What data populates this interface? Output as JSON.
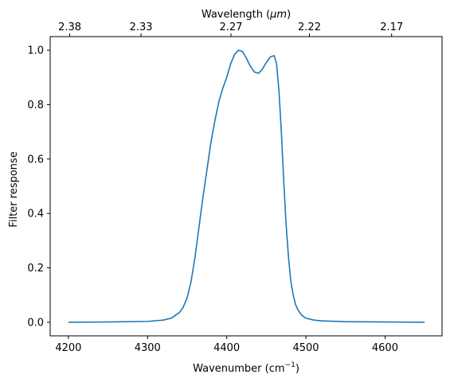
{
  "chart_data": {
    "type": "line",
    "xlabel": "Wavenumber",
    "xlabel_unit": "cm",
    "xlabel_unit_sup": "−1",
    "ylabel": "Filter response",
    "top_xlabel": "Wavelength",
    "top_xlabel_unit": "μm",
    "xlim": [
      4177,
      4672
    ],
    "ylim": [
      -0.05,
      1.05
    ],
    "x_ticks": [
      4200,
      4300,
      4400,
      4500,
      4600
    ],
    "x_tick_labels": [
      "4200",
      "4300",
      "4400",
      "4500",
      "4600"
    ],
    "y_ticks": [
      0.0,
      0.2,
      0.4,
      0.6,
      0.8,
      1.0
    ],
    "y_tick_labels": [
      "0.0",
      "0.2",
      "0.4",
      "0.6",
      "0.8",
      "1.0"
    ],
    "top_ticks_wavenumber": [
      4201.7,
      4291.8,
      4405.3,
      4504.5,
      4608.3
    ],
    "top_tick_labels": [
      "2.38",
      "2.33",
      "2.27",
      "2.22",
      "2.17"
    ],
    "grid": false,
    "line_color": "#1f77b4",
    "series": [
      {
        "x": [
          4200,
          4250,
          4300,
          4320,
          4330,
          4340,
          4345,
          4350,
          4355,
          4360,
          4365,
          4370,
          4375,
          4380,
          4385,
          4390,
          4395,
          4400,
          4405,
          4410,
          4415,
          4420,
          4425,
          4430,
          4435,
          4440,
          4445,
          4450,
          4455,
          4460,
          4463,
          4466,
          4469,
          4472,
          4475,
          4478,
          4481,
          4484,
          4487,
          4490,
          4495,
          4500,
          4510,
          4520,
          4550,
          4600,
          4650
        ],
        "y": [
          0.0,
          0.001,
          0.003,
          0.008,
          0.015,
          0.035,
          0.055,
          0.09,
          0.15,
          0.24,
          0.35,
          0.46,
          0.56,
          0.66,
          0.74,
          0.81,
          0.86,
          0.9,
          0.95,
          0.985,
          1.0,
          0.995,
          0.97,
          0.94,
          0.92,
          0.915,
          0.93,
          0.955,
          0.975,
          0.98,
          0.95,
          0.85,
          0.7,
          0.52,
          0.36,
          0.24,
          0.15,
          0.1,
          0.065,
          0.045,
          0.025,
          0.015,
          0.008,
          0.005,
          0.002,
          0.001,
          0.0
        ]
      }
    ]
  }
}
